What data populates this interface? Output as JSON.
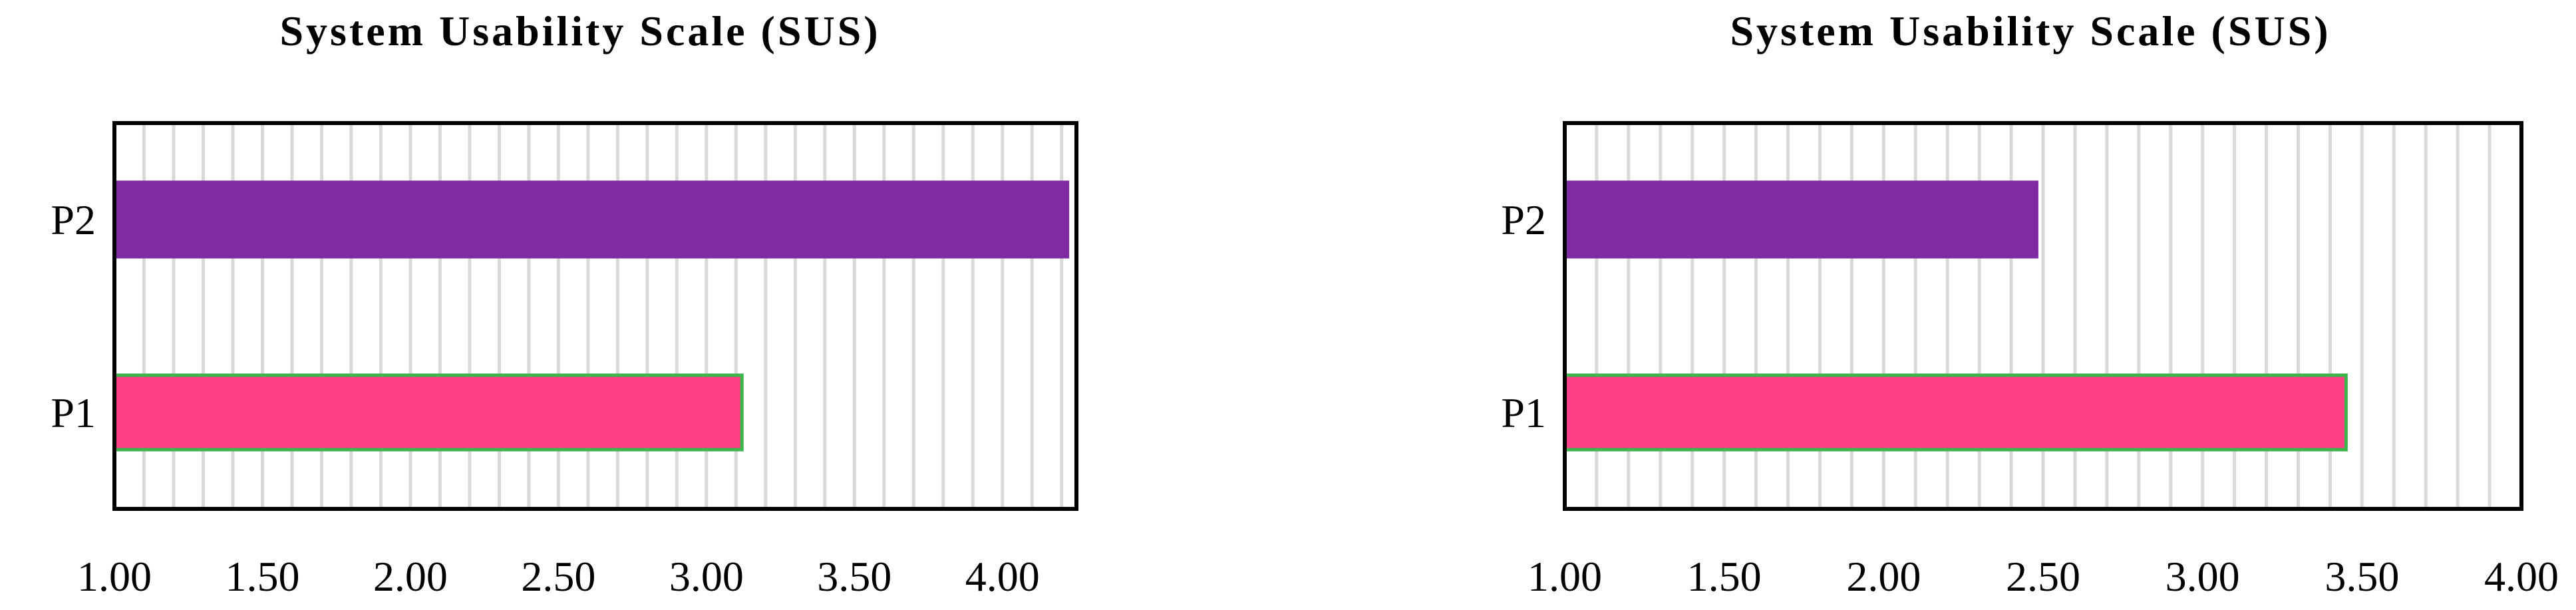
{
  "chart_data": [
    {
      "type": "bar",
      "orientation": "horizontal",
      "title": "System Usability Scale (SUS)",
      "categories": [
        "P1",
        "P2"
      ],
      "values": [
        3.12,
        4.22
      ],
      "bar_colors": [
        "#FF4086",
        "#7F2BA3"
      ],
      "bar_outline_colors": [
        "#3CB54A",
        "#7F2BA3"
      ],
      "xlim": [
        1.0,
        4.25
      ],
      "xticks": [
        "1.00",
        "1.50",
        "2.00",
        "2.50",
        "3.00",
        "3.50",
        "4.00"
      ],
      "grid": true
    },
    {
      "type": "bar",
      "orientation": "horizontal",
      "title": "System Usability Scale (SUS)",
      "categories": [
        "P1",
        "P2"
      ],
      "values": [
        3.45,
        2.48
      ],
      "bar_colors": [
        "#FF4086",
        "#7F2BA3"
      ],
      "bar_outline_colors": [
        "#3CB54A",
        "#7F2BA3"
      ],
      "xlim": [
        1.0,
        4.0
      ],
      "xticks": [
        "1.00",
        "1.50",
        "2.00",
        "2.50",
        "3.00",
        "3.50",
        "4.00"
      ],
      "grid": true
    }
  ]
}
